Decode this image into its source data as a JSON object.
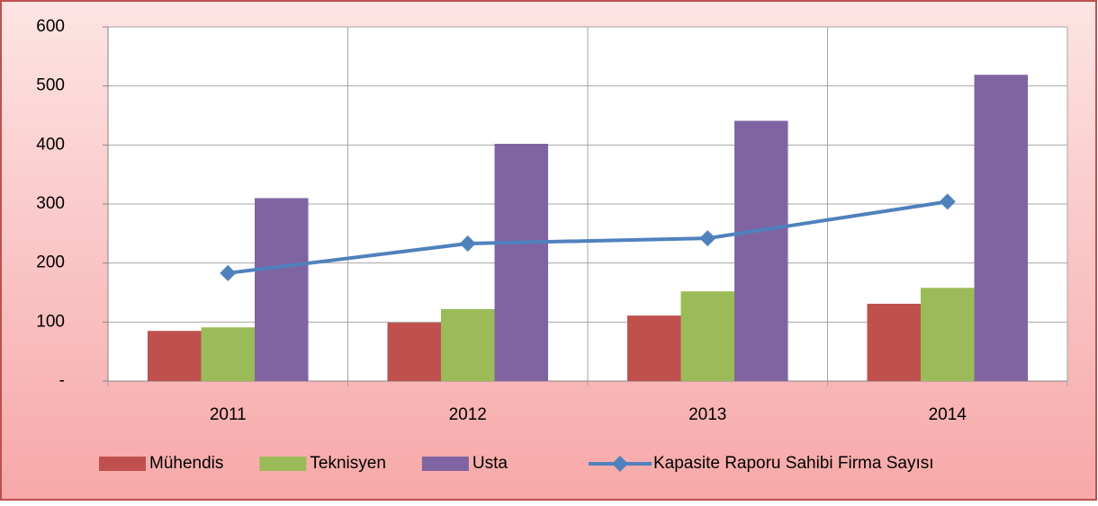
{
  "chart_data": {
    "type": "bar",
    "categories": [
      "2011",
      "2012",
      "2013",
      "2014"
    ],
    "series": [
      {
        "name": "Mühendis",
        "color": "#c0504d",
        "values": [
          85,
          99,
          111,
          131
        ]
      },
      {
        "name": "Teknisyen",
        "color": "#9bbb59",
        "values": [
          91,
          122,
          152,
          158
        ]
      },
      {
        "name": "Usta",
        "color": "#8064a2",
        "values": [
          310,
          402,
          441,
          519
        ]
      },
      {
        "name": "Kapasite Raporu Sahibi Firma Sayısı",
        "type": "line",
        "color": "#4f81bd",
        "values": [
          183,
          233,
          242,
          304
        ]
      }
    ],
    "ylim": [
      0,
      600
    ],
    "yticks": [
      {
        "value": 0,
        "label": "-"
      },
      100,
      200,
      300,
      400,
      500,
      600
    ],
    "grid": true,
    "legend": "bottom"
  }
}
